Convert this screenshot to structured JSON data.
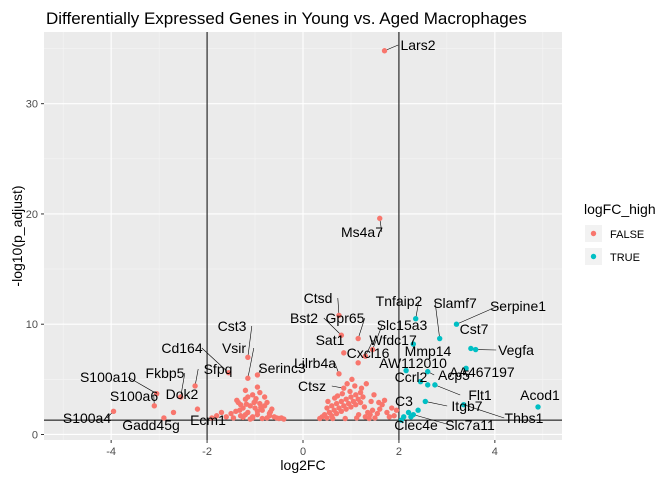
{
  "chart_data": {
    "type": "scatter",
    "title": "Differentially Expressed Genes in Young vs. Aged Macrophages",
    "xlabel": "log2FC",
    "ylabel": "-log10(p_adjust)",
    "xlim": [
      -5.4,
      5.4
    ],
    "ylim": [
      -0.5,
      36.5
    ],
    "x_ticks": [
      -4,
      -2,
      0,
      2,
      4
    ],
    "y_ticks": [
      0,
      10,
      20,
      30
    ],
    "vlines": [
      -2,
      2
    ],
    "hline": 1.3,
    "grid": true,
    "legend": {
      "title": "logFC_high",
      "position": "right",
      "entries": [
        {
          "label": "FALSE",
          "color": "#F8766D"
        },
        {
          "label": "TRUE",
          "color": "#00BFC4"
        }
      ]
    },
    "labeled_points": [
      {
        "label": "Lars2",
        "x": 1.7,
        "y": 34.8,
        "high": false
      },
      {
        "label": "Ms4a7",
        "x": 1.6,
        "y": 19.6,
        "high": false
      },
      {
        "label": "Ctsd",
        "x": 0.75,
        "y": 10.8,
        "high": false
      },
      {
        "label": "Bst2",
        "x": 0.8,
        "y": 9.0,
        "high": false
      },
      {
        "label": "Gpr65",
        "x": 1.15,
        "y": 8.7,
        "high": false
      },
      {
        "label": "Sat1",
        "x": 0.85,
        "y": 7.4,
        "high": false
      },
      {
        "label": "Cxcl16",
        "x": 1.15,
        "y": 6.5,
        "high": false
      },
      {
        "label": "Wfdc17",
        "x": 1.3,
        "y": 7.1,
        "high": false
      },
      {
        "label": "Slc15a3",
        "x": 1.45,
        "y": 7.7,
        "high": false
      },
      {
        "label": "Lilrb4a",
        "x": 0.75,
        "y": 5.5,
        "high": false
      },
      {
        "label": "Ctsz",
        "x": 0.85,
        "y": 4.2,
        "high": false
      },
      {
        "label": "Cst3",
        "x": -1.15,
        "y": 7.0,
        "high": false
      },
      {
        "label": "Cd164",
        "x": -1.55,
        "y": 5.6,
        "high": false
      },
      {
        "label": "Vsir",
        "x": -1.15,
        "y": 5.1,
        "high": false
      },
      {
        "label": "Serinc3",
        "x": -0.95,
        "y": 5.4,
        "high": false
      },
      {
        "label": "Sfpq",
        "x": -2.25,
        "y": 4.4,
        "high": false
      },
      {
        "label": "Fkbp5",
        "x": -2.55,
        "y": 3.4,
        "high": false
      },
      {
        "label": "S100a10",
        "x": -3.05,
        "y": 3.7,
        "high": false
      },
      {
        "label": "S100a6",
        "x": -3.1,
        "y": 2.6,
        "high": false
      },
      {
        "label": "Dok2",
        "x": -2.7,
        "y": 2.0,
        "high": false
      },
      {
        "label": "S100a4",
        "x": -3.95,
        "y": 2.1,
        "high": false
      },
      {
        "label": "Gadd45g",
        "x": -2.9,
        "y": 1.5,
        "high": false
      },
      {
        "label": "Ecm1",
        "x": -2.2,
        "y": 2.3,
        "high": false
      },
      {
        "label": "Tnfaip2",
        "x": 2.35,
        "y": 10.5,
        "high": true
      },
      {
        "label": "Slamf7",
        "x": 2.85,
        "y": 8.7,
        "high": true
      },
      {
        "label": "Serpine1",
        "x": 3.2,
        "y": 10.0,
        "high": true
      },
      {
        "label": "Cst7",
        "x": 3.5,
        "y": 7.8,
        "high": true
      },
      {
        "label": "Mmp14",
        "x": 2.3,
        "y": 8.2,
        "high": true
      },
      {
        "label": "Vegfa",
        "x": 3.6,
        "y": 7.7,
        "high": true
      },
      {
        "label": "AW112010",
        "x": 2.15,
        "y": 5.8,
        "high": true
      },
      {
        "label": "AA467197",
        "x": 3.4,
        "y": 6.0,
        "high": true
      },
      {
        "label": "Acp5",
        "x": 2.6,
        "y": 5.7,
        "high": true
      },
      {
        "label": "Ccrl2",
        "x": 2.45,
        "y": 4.8,
        "high": true
      },
      {
        "label": "Flt1",
        "x": 2.75,
        "y": 4.5,
        "high": true
      },
      {
        "label": "Acod1",
        "x": 4.9,
        "y": 2.5,
        "high": true
      },
      {
        "label": "C3",
        "x": 2.25,
        "y": 1.6,
        "high": true
      },
      {
        "label": "Itgb7",
        "x": 2.55,
        "y": 3.0,
        "high": true
      },
      {
        "label": "Thbs1",
        "x": 3.35,
        "y": 2.7,
        "high": true
      },
      {
        "label": "Clec4e",
        "x": 2.05,
        "y": 1.3,
        "high": true
      },
      {
        "label": "Slc7a11",
        "x": 2.3,
        "y": 1.8,
        "high": true
      }
    ],
    "extra_points": {
      "false": [
        [
          -1.05,
          1.6
        ],
        [
          -0.95,
          1.8
        ],
        [
          -1.15,
          2.0
        ],
        [
          -0.85,
          2.2
        ],
        [
          -1.25,
          2.4
        ],
        [
          -0.75,
          1.5
        ],
        [
          -1.1,
          2.6
        ],
        [
          -0.9,
          2.8
        ],
        [
          -1.3,
          1.7
        ],
        [
          -0.7,
          1.9
        ],
        [
          -1.0,
          3.0
        ],
        [
          -1.2,
          3.2
        ],
        [
          -0.8,
          3.4
        ],
        [
          -1.35,
          2.9
        ],
        [
          -0.65,
          2.3
        ],
        [
          -1.05,
          3.6
        ],
        [
          -0.9,
          3.8
        ],
        [
          -1.2,
          4.0
        ],
        [
          -0.95,
          4.3
        ],
        [
          -1.4,
          2.1
        ],
        [
          -0.6,
          1.6
        ],
        [
          -1.45,
          1.5
        ],
        [
          -0.55,
          1.5
        ],
        [
          -1.1,
          1.4
        ],
        [
          -0.85,
          1.45
        ],
        [
          -1.25,
          1.55
        ],
        [
          -0.7,
          1.7
        ],
        [
          -1.5,
          1.9
        ],
        [
          -0.5,
          1.45
        ],
        [
          -1.0,
          2.4
        ],
        [
          -0.8,
          2.6
        ],
        [
          -1.3,
          2.7
        ],
        [
          -1.15,
          3.4
        ],
        [
          -0.75,
          2.9
        ],
        [
          -1.6,
          1.6
        ],
        [
          -0.45,
          1.5
        ],
        [
          -1.7,
          2.0
        ],
        [
          -1.8,
          1.7
        ],
        [
          -1.9,
          1.5
        ],
        [
          -0.4,
          1.4
        ],
        [
          -1.05,
          1.5
        ],
        [
          -0.95,
          2.1
        ],
        [
          -1.2,
          1.8
        ],
        [
          -0.88,
          2.45
        ],
        [
          -1.32,
          2.2
        ],
        [
          -1.02,
          2.9
        ],
        [
          -0.68,
          2.05
        ],
        [
          -1.18,
          2.75
        ],
        [
          -0.98,
          3.25
        ],
        [
          -1.38,
          3.1
        ],
        [
          0.5,
          1.5
        ],
        [
          0.6,
          1.7
        ],
        [
          0.7,
          1.9
        ],
        [
          0.8,
          2.1
        ],
        [
          0.9,
          2.3
        ],
        [
          1.0,
          2.5
        ],
        [
          1.1,
          2.7
        ],
        [
          1.2,
          2.9
        ],
        [
          1.3,
          1.6
        ],
        [
          1.4,
          1.8
        ],
        [
          0.55,
          2.0
        ],
        [
          0.65,
          2.2
        ],
        [
          0.75,
          2.4
        ],
        [
          0.85,
          2.6
        ],
        [
          0.95,
          2.8
        ],
        [
          1.05,
          3.0
        ],
        [
          1.15,
          3.2
        ],
        [
          1.25,
          3.4
        ],
        [
          1.35,
          2.0
        ],
        [
          1.45,
          2.2
        ],
        [
          0.4,
          1.6
        ],
        [
          0.45,
          1.8
        ],
        [
          0.5,
          2.4
        ],
        [
          0.6,
          2.6
        ],
        [
          0.7,
          2.8
        ],
        [
          0.8,
          3.0
        ],
        [
          0.9,
          3.2
        ],
        [
          1.0,
          3.4
        ],
        [
          1.1,
          3.6
        ],
        [
          1.2,
          3.8
        ],
        [
          1.5,
          1.5
        ],
        [
          1.55,
          1.9
        ],
        [
          1.6,
          2.3
        ],
        [
          1.65,
          2.7
        ],
        [
          1.7,
          3.1
        ],
        [
          1.75,
          2.0
        ],
        [
          1.8,
          1.6
        ],
        [
          1.85,
          2.4
        ],
        [
          1.9,
          1.7
        ],
        [
          1.95,
          2.2
        ],
        [
          0.35,
          1.45
        ],
        [
          0.62,
          1.45
        ],
        [
          0.88,
          1.45
        ],
        [
          1.12,
          1.5
        ],
        [
          1.38,
          1.45
        ],
        [
          0.72,
          3.5
        ],
        [
          0.98,
          3.9
        ],
        [
          1.22,
          4.2
        ],
        [
          1.48,
          3.6
        ],
        [
          1.58,
          2.9
        ],
        [
          0.52,
          3.0
        ],
        [
          0.82,
          3.7
        ],
        [
          1.08,
          4.4
        ],
        [
          1.32,
          4.6
        ],
        [
          1.02,
          5.0
        ],
        [
          0.92,
          4.6
        ],
        [
          1.42,
          3.0
        ],
        [
          1.28,
          2.5
        ],
        [
          0.66,
          3.3
        ],
        [
          1.16,
          1.8
        ]
      ],
      "true": [
        [
          2.1,
          1.6
        ],
        [
          2.2,
          2.0
        ],
        [
          2.4,
          2.2
        ],
        [
          2.45,
          4.8
        ],
        [
          2.6,
          4.5
        ]
      ]
    }
  }
}
